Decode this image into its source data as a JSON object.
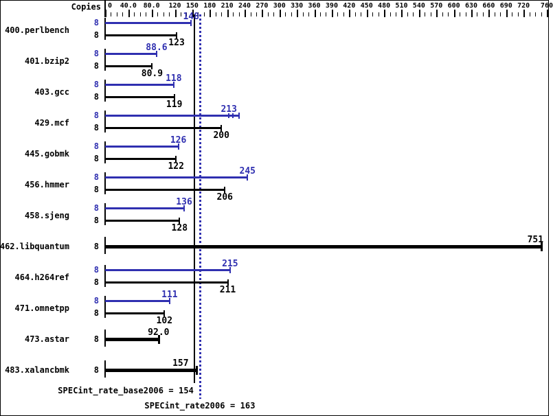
{
  "title_area": {
    "copies_label": "Copies"
  },
  "colors": {
    "peak": "#2f2fb0",
    "base": "#000000",
    "background": "#ffffff",
    "border": "#000000"
  },
  "chart_data": {
    "type": "bar",
    "orientation": "horizontal",
    "title": "",
    "xlabel": "",
    "ylabel": "Copies",
    "legend_position": "none",
    "grid": false,
    "axis": {
      "position": "top",
      "min": 0,
      "max": 760,
      "minor_tick_step": 10,
      "tick_values": [
        0,
        40,
        80,
        120,
        150,
        180,
        210,
        240,
        270,
        300,
        330,
        360,
        390,
        420,
        450,
        480,
        510,
        540,
        570,
        600,
        630,
        660,
        690,
        720,
        760
      ],
      "tick_labels": [
        "0",
        "40.0",
        "80.0",
        "120",
        "150",
        "180",
        "210",
        "240",
        "270",
        "300",
        "330",
        "360",
        "390",
        "420",
        "450",
        "480",
        "510",
        "540",
        "570",
        "600",
        "630",
        "660",
        "690",
        "720",
        "760"
      ]
    },
    "benchmarks": [
      {
        "name": "400.perlbench",
        "copies": "8",
        "peak": {
          "value": 148,
          "label": "148"
        },
        "base": {
          "value": 123,
          "label": "123"
        }
      },
      {
        "name": "401.bzip2",
        "copies": "8",
        "peak": {
          "value": 88.6,
          "label": "88.6"
        },
        "base": {
          "value": 80.9,
          "label": "80.9"
        }
      },
      {
        "name": "403.gcc",
        "copies": "8",
        "peak": {
          "value": 118,
          "label": "118"
        },
        "base": {
          "value": 119,
          "label": "119"
        }
      },
      {
        "name": "429.mcf",
        "copies": "8",
        "peak": {
          "value": 213,
          "label": "213",
          "bar_end": 230,
          "run_ticks": [
            213,
            220
          ],
          "label_at": 213
        },
        "base": {
          "value": 200,
          "label": "200"
        }
      },
      {
        "name": "445.gobmk",
        "copies": "8",
        "peak": {
          "value": 126,
          "label": "126"
        },
        "base": {
          "value": 122,
          "label": "122"
        }
      },
      {
        "name": "456.hmmer",
        "copies": "8",
        "peak": {
          "value": 245,
          "label": "245"
        },
        "base": {
          "value": 206,
          "label": "206"
        }
      },
      {
        "name": "458.sjeng",
        "copies": "8",
        "peak": {
          "value": 136,
          "label": "136"
        },
        "base": {
          "value": 128,
          "label": "128"
        }
      },
      {
        "name": "462.libquantum",
        "copies": "8",
        "base_only": true,
        "base": {
          "value": 751,
          "label": "751",
          "label_dx": -9
        }
      },
      {
        "name": "464.h264ref",
        "copies": "8",
        "peak": {
          "value": 215,
          "label": "215"
        },
        "base": {
          "value": 211,
          "label": "211"
        }
      },
      {
        "name": "471.omnetpp",
        "copies": "8",
        "peak": {
          "value": 111,
          "label": "111"
        },
        "base": {
          "value": 102,
          "label": "102"
        }
      },
      {
        "name": "473.astar",
        "copies": "8",
        "base_only": true,
        "base": {
          "value": 92.0,
          "label": "92.0"
        }
      },
      {
        "name": "483.xalancbmk",
        "copies": "8",
        "base_only": true,
        "base": {
          "value": 157,
          "label": "157",
          "label_dx": -23
        }
      }
    ],
    "reference_lines": [
      {
        "metric": "SPECint_rate_base2006",
        "value": 154,
        "style": "solid",
        "series": "base"
      },
      {
        "metric": "SPECint_rate2006",
        "value": 163,
        "style": "dotted",
        "series": "peak"
      }
    ]
  },
  "summary": {
    "base": {
      "text": "SPECint_rate_base2006 = 154"
    },
    "peak": {
      "text": "SPECint_rate2006 = 163"
    }
  }
}
